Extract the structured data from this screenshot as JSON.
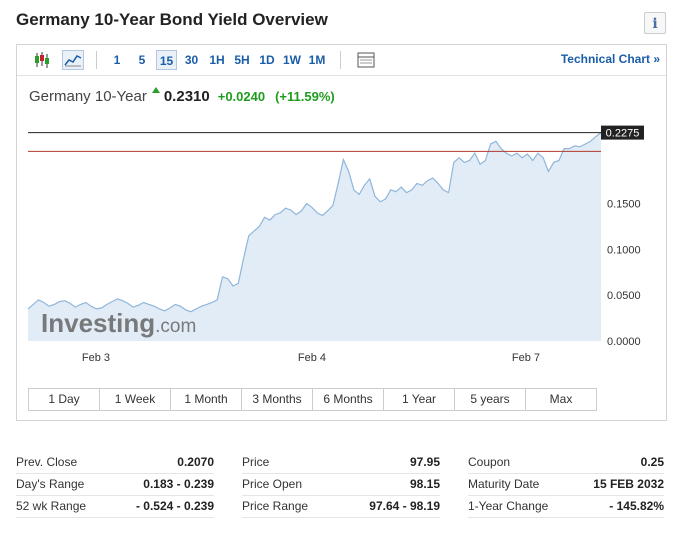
{
  "title": "Germany 10-Year Bond Yield Overview",
  "info_icon": "i",
  "toolbar": {
    "intervals": [
      "1",
      "5",
      "15",
      "30",
      "1H",
      "5H",
      "1D",
      "1W",
      "1M"
    ],
    "active_interval": "15",
    "technical_chart": "Technical Chart »"
  },
  "quote": {
    "name": "Germany 10-Year",
    "price": "0.2310",
    "change": "+0.0240",
    "change_pct": "(+11.59%)",
    "up_color": "#1e9c1e"
  },
  "chart_data": {
    "type": "area",
    "watermark": "Investing.com",
    "x_labels": [
      "Feb 3",
      "Feb 4",
      "Feb 7"
    ],
    "y_ticks": [
      "0.0000",
      "0.0500",
      "0.1000",
      "0.1500"
    ],
    "ylim": [
      0,
      0.25
    ],
    "current_value_label": "0.2275",
    "current_value": 0.2275,
    "prev_close_line": 0.207,
    "line_color": "#8fb6dc",
    "fill_color": "#e2ecf6",
    "values": [
      0.035,
      0.04,
      0.045,
      0.042,
      0.038,
      0.04,
      0.043,
      0.044,
      0.041,
      0.037,
      0.04,
      0.042,
      0.038,
      0.035,
      0.036,
      0.04,
      0.043,
      0.046,
      0.044,
      0.041,
      0.037,
      0.039,
      0.042,
      0.04,
      0.038,
      0.035,
      0.033,
      0.036,
      0.04,
      0.038,
      0.034,
      0.032,
      0.035,
      0.038,
      0.04,
      0.042,
      0.045,
      0.07,
      0.068,
      0.06,
      0.063,
      0.09,
      0.115,
      0.12,
      0.125,
      0.135,
      0.132,
      0.138,
      0.14,
      0.145,
      0.143,
      0.138,
      0.142,
      0.15,
      0.146,
      0.14,
      0.137,
      0.142,
      0.148,
      0.172,
      0.198,
      0.185,
      0.165,
      0.16,
      0.17,
      0.177,
      0.158,
      0.152,
      0.155,
      0.165,
      0.163,
      0.168,
      0.162,
      0.165,
      0.172,
      0.17,
      0.175,
      0.178,
      0.172,
      0.165,
      0.162,
      0.195,
      0.2,
      0.195,
      0.197,
      0.205,
      0.193,
      0.197,
      0.215,
      0.218,
      0.21,
      0.205,
      0.202,
      0.205,
      0.2,
      0.204,
      0.197,
      0.205,
      0.2,
      0.185,
      0.195,
      0.197,
      0.21,
      0.21,
      0.213,
      0.212,
      0.215,
      0.218,
      0.223,
      0.2275
    ]
  },
  "ranges": [
    "1 Day",
    "1 Week",
    "1 Month",
    "3 Months",
    "6 Months",
    "1 Year",
    "5 years",
    "Max"
  ],
  "stats": [
    [
      {
        "label": "Prev. Close",
        "value": "0.2070"
      },
      {
        "label": "Day's Range",
        "value": "0.183 - 0.239"
      },
      {
        "label": "52 wk Range",
        "value": "- 0.524 - 0.239"
      }
    ],
    [
      {
        "label": "Price",
        "value": "97.95"
      },
      {
        "label": "Price Open",
        "value": "98.15"
      },
      {
        "label": "Price Range",
        "value": "97.64 - 98.19"
      }
    ],
    [
      {
        "label": "Coupon",
        "value": "0.25"
      },
      {
        "label": "Maturity Date",
        "value": "15 FEB 2032"
      },
      {
        "label": "1-Year Change",
        "value": "- 145.82%"
      }
    ]
  ]
}
